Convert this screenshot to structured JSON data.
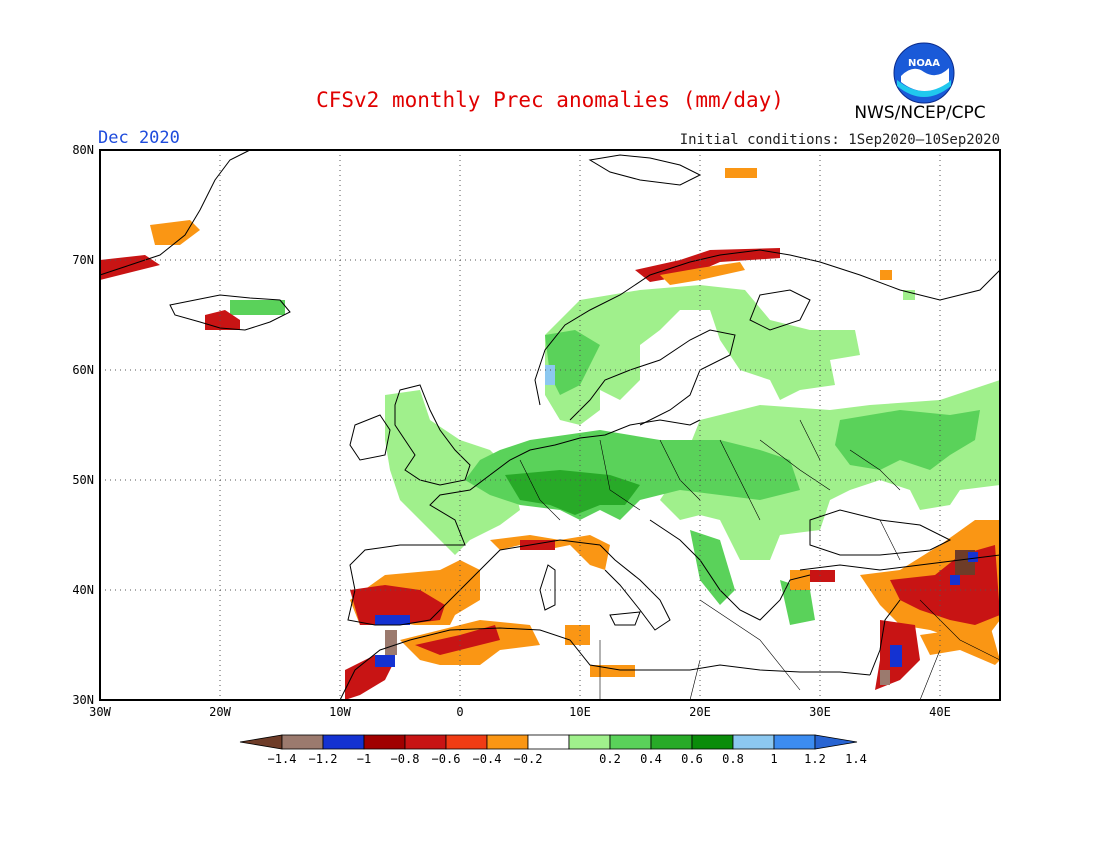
{
  "header": {
    "title": "CFSv2 monthly Prec anomalies (mm/day)",
    "month": "Dec 2020",
    "initial_conditions": "Initial conditions: 1Sep2020—10Sep2020",
    "agency": "NWS/NCEP/CPC",
    "logo_text": "NOAA"
  },
  "axes": {
    "lat_labels": [
      "80N",
      "70N",
      "60N",
      "50N",
      "40N",
      "30N"
    ],
    "lat_values": [
      80,
      70,
      60,
      50,
      40,
      30
    ],
    "lon_labels": [
      "30W",
      "20W",
      "10W",
      "0",
      "10E",
      "20E",
      "30E",
      "40E"
    ],
    "lon_values": [
      -30,
      -20,
      -10,
      0,
      10,
      20,
      30,
      40
    ],
    "lon_range": [
      -30,
      45
    ],
    "lat_range": [
      30,
      80
    ],
    "grid": "dotted"
  },
  "colorbar": {
    "labels": [
      "-1.4",
      "-1.2",
      "-1",
      "-0.8",
      "-0.6",
      "-0.4",
      "-0.2",
      "0.2",
      "0.4",
      "0.6",
      "0.8",
      "1",
      "1.2",
      "1.4"
    ],
    "colors": [
      "#6e3c28",
      "#9b7a6e",
      "#1432d2",
      "#a00000",
      "#c81414",
      "#f03c14",
      "#fa9614",
      "#ffffff",
      "#a0f08c",
      "#5ad25a",
      "#28aa28",
      "#0a8c0a",
      "#8cc8f0",
      "#3c8cf0",
      "#2864d2"
    ]
  },
  "legend_colors": {
    "dark_brown": "#6e3c28",
    "brown": "#9b7a6e",
    "blue": "#1432d2",
    "dark_red": "#a00000",
    "red": "#c81414",
    "orange_red": "#f03c14",
    "orange": "#fa9614",
    "light_green": "#a0f08c",
    "green": "#5ad25a",
    "mid_green": "#28aa28",
    "dark_green": "#0a8c0a",
    "light_blue": "#8cc8f0",
    "mid_blue": "#3c8cf0"
  }
}
